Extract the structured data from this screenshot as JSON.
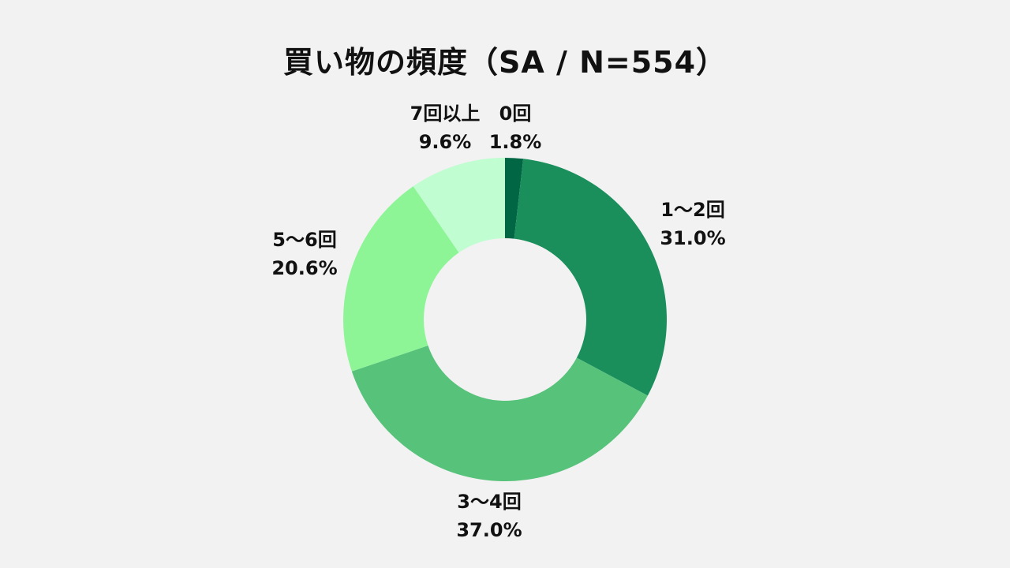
{
  "chart_data": {
    "type": "pie",
    "title": "買い物の頻度（SA / N=554）",
    "unit": "%",
    "slices": [
      {
        "label": "0回",
        "value": 1.8,
        "value_text": "1.8%",
        "color": "#006644"
      },
      {
        "label": "1〜2回",
        "value": 31.0,
        "value_text": "31.0%",
        "color": "#1a8f5c"
      },
      {
        "label": "3〜4回",
        "value": 37.0,
        "value_text": "37.0%",
        "color": "#57c27a"
      },
      {
        "label": "5〜6回",
        "value": 20.6,
        "value_text": "20.6%",
        "color": "#8ef597"
      },
      {
        "label": "7回以上",
        "value": 9.6,
        "value_text": "9.6%",
        "color": "#c0fdd0"
      }
    ]
  },
  "colors": {
    "background": "#f2f2f2",
    "text": "#111111"
  }
}
